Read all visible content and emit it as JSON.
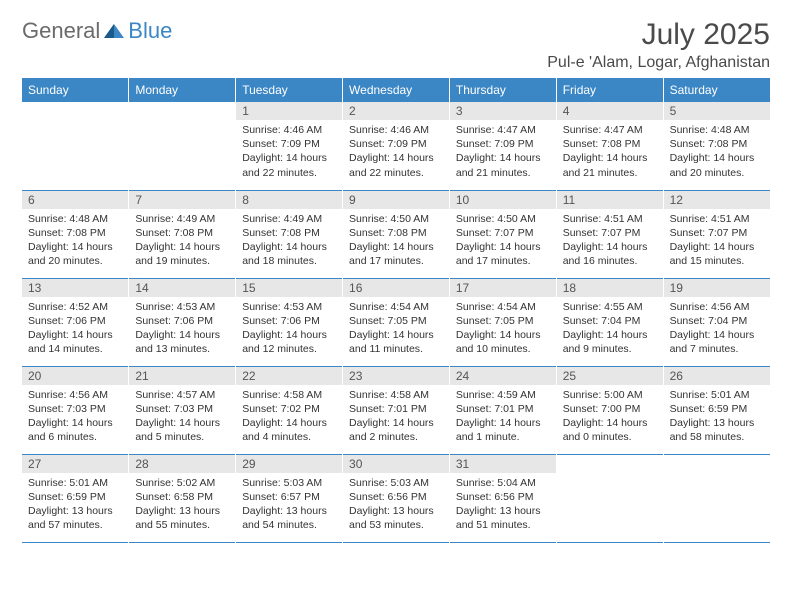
{
  "brand": {
    "part1": "General",
    "part2": "Blue"
  },
  "title": "July 2025",
  "location": "Pul-e 'Alam, Logar, Afghanistan",
  "colors": {
    "header_bg": "#3b86c4",
    "header_text": "#ffffff",
    "daynum_bg": "#e7e7e7",
    "text": "#333333",
    "divider": "#3b86c4"
  },
  "weekdays": [
    "Sunday",
    "Monday",
    "Tuesday",
    "Wednesday",
    "Thursday",
    "Friday",
    "Saturday"
  ],
  "weeks": [
    [
      null,
      null,
      {
        "n": "1",
        "sunrise": "4:46 AM",
        "sunset": "7:09 PM",
        "daylight": "14 hours and 22 minutes."
      },
      {
        "n": "2",
        "sunrise": "4:46 AM",
        "sunset": "7:09 PM",
        "daylight": "14 hours and 22 minutes."
      },
      {
        "n": "3",
        "sunrise": "4:47 AM",
        "sunset": "7:09 PM",
        "daylight": "14 hours and 21 minutes."
      },
      {
        "n": "4",
        "sunrise": "4:47 AM",
        "sunset": "7:08 PM",
        "daylight": "14 hours and 21 minutes."
      },
      {
        "n": "5",
        "sunrise": "4:48 AM",
        "sunset": "7:08 PM",
        "daylight": "14 hours and 20 minutes."
      }
    ],
    [
      {
        "n": "6",
        "sunrise": "4:48 AM",
        "sunset": "7:08 PM",
        "daylight": "14 hours and 20 minutes."
      },
      {
        "n": "7",
        "sunrise": "4:49 AM",
        "sunset": "7:08 PM",
        "daylight": "14 hours and 19 minutes."
      },
      {
        "n": "8",
        "sunrise": "4:49 AM",
        "sunset": "7:08 PM",
        "daylight": "14 hours and 18 minutes."
      },
      {
        "n": "9",
        "sunrise": "4:50 AM",
        "sunset": "7:08 PM",
        "daylight": "14 hours and 17 minutes."
      },
      {
        "n": "10",
        "sunrise": "4:50 AM",
        "sunset": "7:07 PM",
        "daylight": "14 hours and 17 minutes."
      },
      {
        "n": "11",
        "sunrise": "4:51 AM",
        "sunset": "7:07 PM",
        "daylight": "14 hours and 16 minutes."
      },
      {
        "n": "12",
        "sunrise": "4:51 AM",
        "sunset": "7:07 PM",
        "daylight": "14 hours and 15 minutes."
      }
    ],
    [
      {
        "n": "13",
        "sunrise": "4:52 AM",
        "sunset": "7:06 PM",
        "daylight": "14 hours and 14 minutes."
      },
      {
        "n": "14",
        "sunrise": "4:53 AM",
        "sunset": "7:06 PM",
        "daylight": "14 hours and 13 minutes."
      },
      {
        "n": "15",
        "sunrise": "4:53 AM",
        "sunset": "7:06 PM",
        "daylight": "14 hours and 12 minutes."
      },
      {
        "n": "16",
        "sunrise": "4:54 AM",
        "sunset": "7:05 PM",
        "daylight": "14 hours and 11 minutes."
      },
      {
        "n": "17",
        "sunrise": "4:54 AM",
        "sunset": "7:05 PM",
        "daylight": "14 hours and 10 minutes."
      },
      {
        "n": "18",
        "sunrise": "4:55 AM",
        "sunset": "7:04 PM",
        "daylight": "14 hours and 9 minutes."
      },
      {
        "n": "19",
        "sunrise": "4:56 AM",
        "sunset": "7:04 PM",
        "daylight": "14 hours and 7 minutes."
      }
    ],
    [
      {
        "n": "20",
        "sunrise": "4:56 AM",
        "sunset": "7:03 PM",
        "daylight": "14 hours and 6 minutes."
      },
      {
        "n": "21",
        "sunrise": "4:57 AM",
        "sunset": "7:03 PM",
        "daylight": "14 hours and 5 minutes."
      },
      {
        "n": "22",
        "sunrise": "4:58 AM",
        "sunset": "7:02 PM",
        "daylight": "14 hours and 4 minutes."
      },
      {
        "n": "23",
        "sunrise": "4:58 AM",
        "sunset": "7:01 PM",
        "daylight": "14 hours and 2 minutes."
      },
      {
        "n": "24",
        "sunrise": "4:59 AM",
        "sunset": "7:01 PM",
        "daylight": "14 hours and 1 minute."
      },
      {
        "n": "25",
        "sunrise": "5:00 AM",
        "sunset": "7:00 PM",
        "daylight": "14 hours and 0 minutes."
      },
      {
        "n": "26",
        "sunrise": "5:01 AM",
        "sunset": "6:59 PM",
        "daylight": "13 hours and 58 minutes."
      }
    ],
    [
      {
        "n": "27",
        "sunrise": "5:01 AM",
        "sunset": "6:59 PM",
        "daylight": "13 hours and 57 minutes."
      },
      {
        "n": "28",
        "sunrise": "5:02 AM",
        "sunset": "6:58 PM",
        "daylight": "13 hours and 55 minutes."
      },
      {
        "n": "29",
        "sunrise": "5:03 AM",
        "sunset": "6:57 PM",
        "daylight": "13 hours and 54 minutes."
      },
      {
        "n": "30",
        "sunrise": "5:03 AM",
        "sunset": "6:56 PM",
        "daylight": "13 hours and 53 minutes."
      },
      {
        "n": "31",
        "sunrise": "5:04 AM",
        "sunset": "6:56 PM",
        "daylight": "13 hours and 51 minutes."
      },
      null,
      null
    ]
  ],
  "labels": {
    "sunrise": "Sunrise:",
    "sunset": "Sunset:",
    "daylight": "Daylight:"
  }
}
